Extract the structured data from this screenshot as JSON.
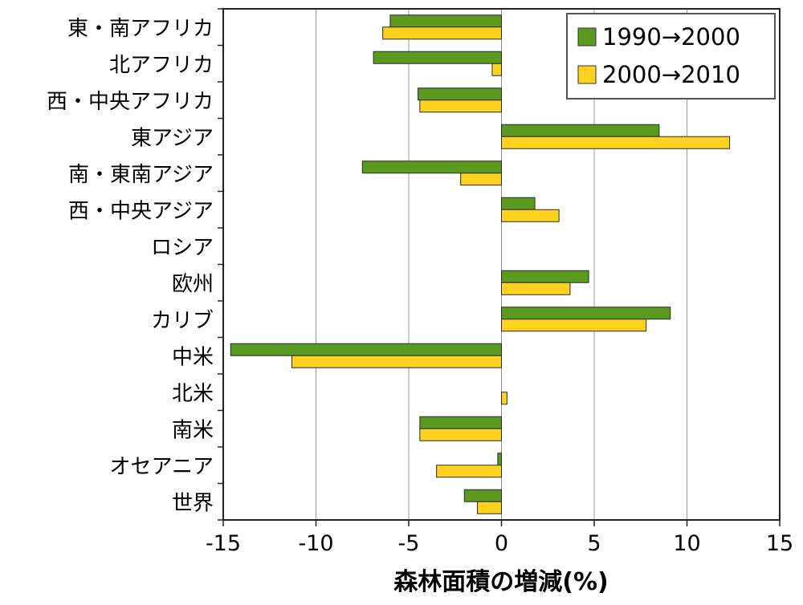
{
  "chart_data": {
    "type": "bar",
    "orientation": "horizontal",
    "categories": [
      "東・南アフリカ",
      "北アフリカ",
      "西・中央アフリカ",
      "東アジア",
      "南・東南アジア",
      "西・中央アジア",
      "ロシア",
      "欧州",
      "カリブ",
      "中米",
      "北米",
      "南米",
      "オセアニア",
      "世界"
    ],
    "series": [
      {
        "name": "1990→2000",
        "color": "#5a9a1e",
        "values": [
          -6.0,
          -6.9,
          -4.5,
          8.5,
          -7.5,
          1.8,
          0.0,
          4.7,
          9.1,
          -14.6,
          0.0,
          -4.4,
          -0.2,
          -2.0
        ]
      },
      {
        "name": "2000→2010",
        "color": "#ffd21f",
        "values": [
          -6.4,
          -0.5,
          -4.4,
          12.3,
          -2.2,
          3.1,
          0.0,
          3.7,
          7.8,
          -11.3,
          0.3,
          -4.4,
          -3.5,
          -1.3
        ]
      }
    ],
    "xlabel": "森林面積の増減(%)",
    "ylabel": "",
    "xlim": [
      -15,
      15
    ],
    "xticks": [
      -15,
      -10,
      -5,
      0,
      5,
      10,
      15
    ],
    "grid": "vertical",
    "legend_position": "top-right"
  }
}
